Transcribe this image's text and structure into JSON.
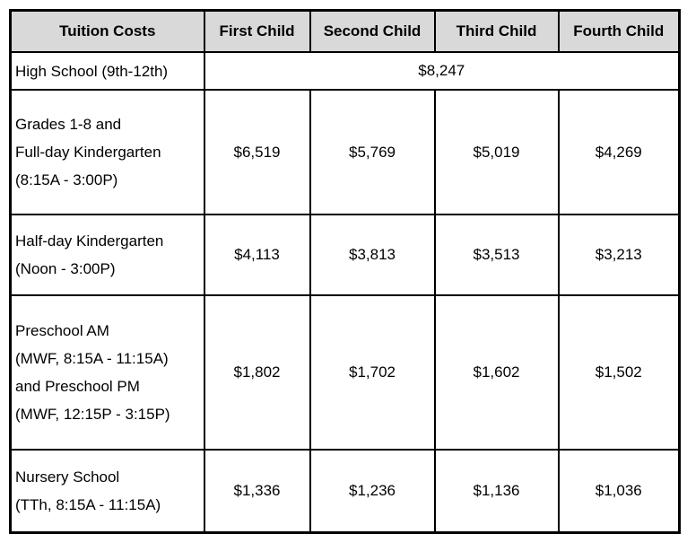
{
  "table": {
    "title": "Tuition Costs",
    "headers": [
      "Tuition Costs",
      "First Child",
      "Second Child",
      "Third Child",
      "Fourth Child"
    ],
    "rows": [
      {
        "label": "High School (9th-12th)",
        "merged_value": "$8,247"
      },
      {
        "label": "Grades 1-8 and\nFull-day Kindergarten\n(8:15A - 3:00P)",
        "values": [
          "$6,519",
          "$5,769",
          "$5,019",
          "$4,269"
        ]
      },
      {
        "label": "Half-day Kindergarten\n(Noon - 3:00P)",
        "values": [
          "$4,113",
          "$3,813",
          "$3,513",
          "$3,213"
        ]
      },
      {
        "label": "Preschool AM\n(MWF, 8:15A - 11:15A)\nand Preschool PM\n(MWF, 12:15P - 3:15P)",
        "values": [
          "$1,802",
          "$1,702",
          "$1,602",
          "$1,502"
        ]
      },
      {
        "label": "Nursery School\n(TTh, 8:15A - 11:15A)",
        "values": [
          "$1,336",
          "$1,236",
          "$1,136",
          "$1,036"
        ]
      }
    ],
    "colors": {
      "header_background": "#d9d9d9",
      "border": "#000000",
      "text": "#000000",
      "cell_background": "#ffffff"
    }
  }
}
